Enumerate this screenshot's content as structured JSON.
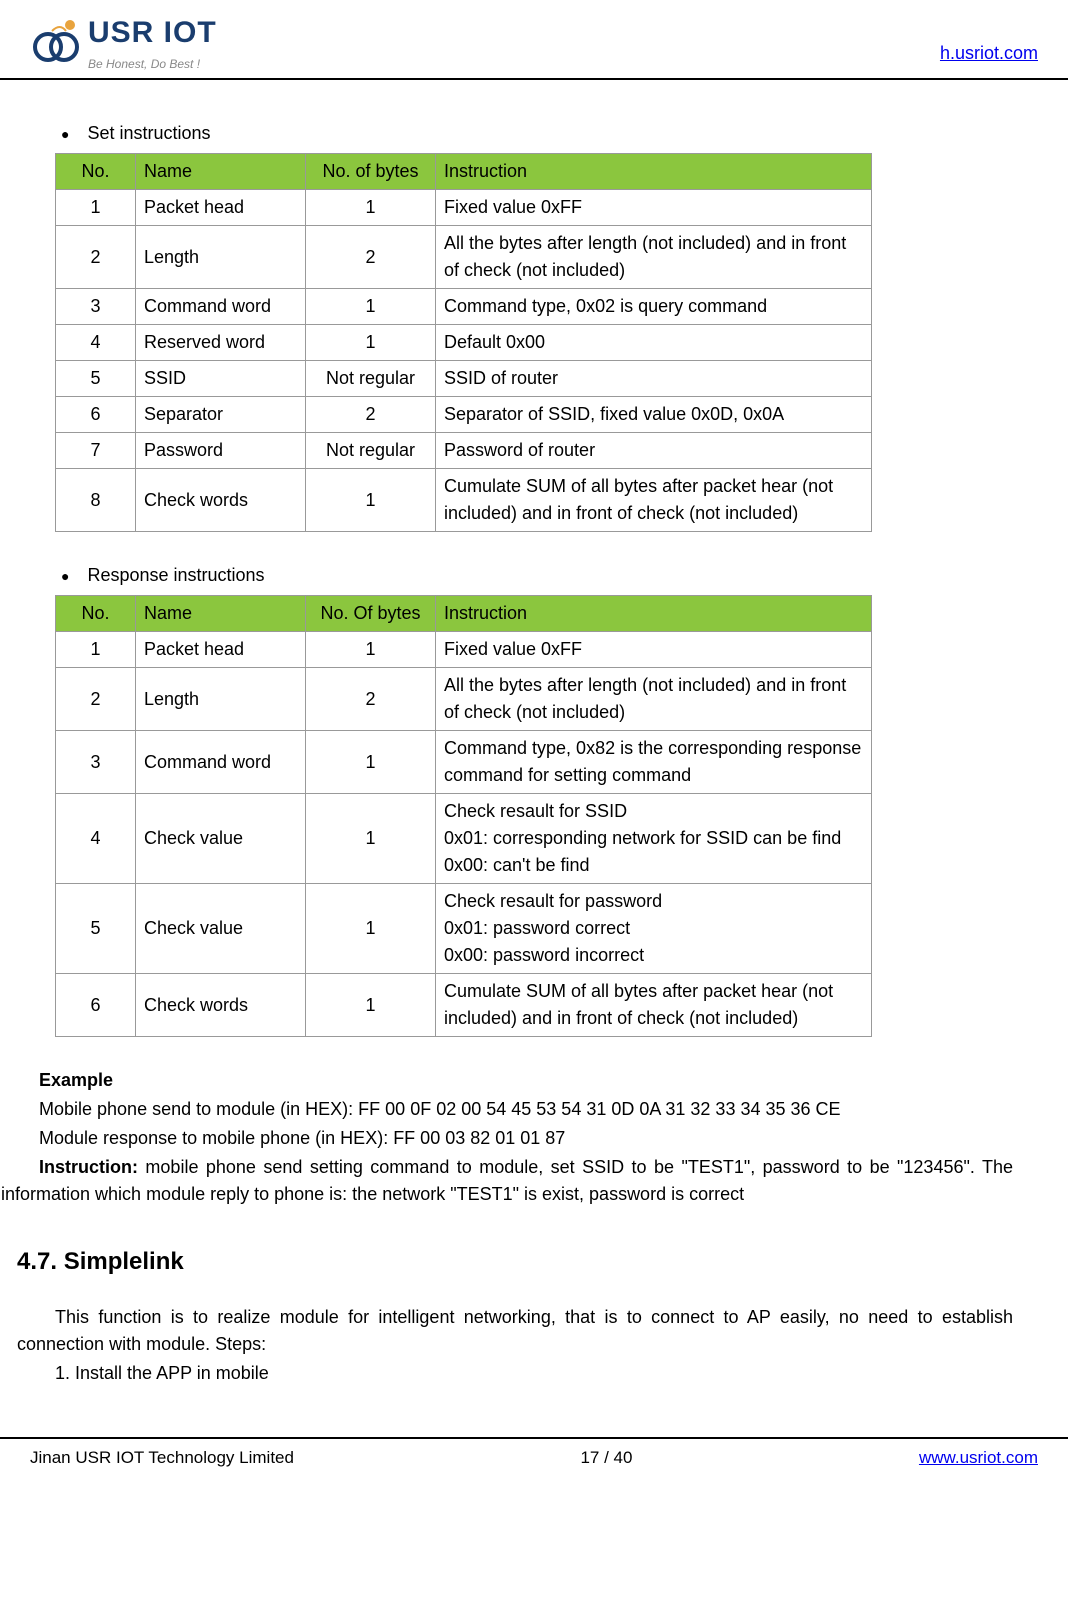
{
  "header": {
    "logo_title": "USR IOT",
    "logo_slogan": "Be Honest, Do Best !",
    "link": "h.usriot.com"
  },
  "section1": {
    "title": "Set instructions",
    "headers": [
      "No.",
      "Name",
      "No. of bytes",
      "Instruction"
    ],
    "rows": [
      [
        "1",
        "Packet head",
        "1",
        "Fixed value 0xFF"
      ],
      [
        "2",
        "Length",
        "2",
        "All the bytes after length (not included) and in front of check (not included)"
      ],
      [
        "3",
        "Command word",
        "1",
        "Command type, 0x02 is query command"
      ],
      [
        "4",
        "Reserved word",
        "1",
        "Default 0x00"
      ],
      [
        "5",
        "SSID",
        "Not regular",
        "SSID of router"
      ],
      [
        "6",
        "Separator",
        "2",
        "Separator of SSID, fixed value 0x0D, 0x0A"
      ],
      [
        "7",
        "Password",
        "Not regular",
        "Password of router"
      ],
      [
        "8",
        "Check words",
        "1",
        "Cumulate SUM of all bytes after packet hear (not included) and in front of check (not included)"
      ]
    ]
  },
  "section2": {
    "title": "Response instructions",
    "headers": [
      "No.",
      "Name",
      "No. Of bytes",
      "Instruction"
    ],
    "rows": [
      [
        "1",
        "Packet head",
        "1",
        "Fixed value 0xFF"
      ],
      [
        "2",
        "Length",
        "2",
        "All the bytes after length (not included) and in front of check (not included)"
      ],
      [
        "3",
        "Command word",
        "1",
        "Command type, 0x82 is the corresponding response command for setting command"
      ],
      [
        "4",
        "Check value",
        "1",
        "Check resault for SSID\n0x01: corresponding network for SSID can be find\n0x00: can't be find"
      ],
      [
        "5",
        "Check value",
        "1",
        "Check resault for password\n0x01: password correct\n0x00: password incorrect"
      ],
      [
        "6",
        "Check words",
        "1",
        "Cumulate SUM of all bytes after packet hear (not included) and in front of check (not included)"
      ]
    ]
  },
  "example": {
    "title": "Example",
    "line1": "Mobile phone send to module (in HEX): FF 00 0F 02 00 54 45 53 54 31 0D 0A 31 32 33 34 35 36 CE",
    "line2": "Module response to mobile phone (in HEX): FF 00 03 82 01 01 87",
    "instr_label": "Instruction:",
    "instr_text": " mobile phone send setting command to module, set SSID to be \"TEST1\", password to be \"123456\". The information which module reply to phone is: the network \"TEST1\" is exist, password is correct"
  },
  "simplelink": {
    "heading": "4.7. Simplelink",
    "para": "This function is to realize module for intelligent networking, that is to connect to AP easily, no need to establish connection with module. Steps:",
    "step1": "1. Install the APP in mobile"
  },
  "footer": {
    "company": "Jinan USR IOT Technology Limited",
    "page": "17 / 40",
    "link": "www.usriot.com"
  },
  "colors": {
    "header_bg": "#8bc63e",
    "border": "#999999",
    "link": "#0000ee",
    "logo_color": "#1a3d6e",
    "logo_accent": "#e8a33d"
  }
}
